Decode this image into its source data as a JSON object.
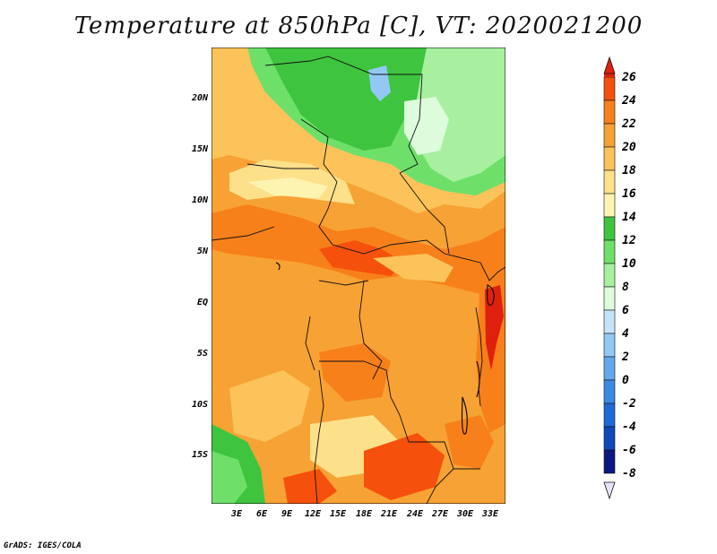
{
  "title": "Temperature at 850hPa [C], VT: 2020021200",
  "credit": "GrADS: IGES/COLA",
  "lat_labels": [
    "20N",
    "15N",
    "10N",
    "5N",
    "EQ",
    "5S",
    "10S",
    "15S"
  ],
  "lon_labels": [
    "3E",
    "6E",
    "9E",
    "12E",
    "15E",
    "18E",
    "21E",
    "24E",
    "27E",
    "30E",
    "33E"
  ],
  "colorbar": {
    "levels": [
      "26",
      "24",
      "22",
      "20",
      "18",
      "16",
      "14",
      "12",
      "10",
      "8",
      "6",
      "4",
      "2",
      "0",
      "-2",
      "-4",
      "-6",
      "-8"
    ],
    "colors_top_to_bottom": [
      "#e0200e",
      "#f5500c",
      "#f7801a",
      "#f7a234",
      "#fbc35a",
      "#fde08a",
      "#fef4b2",
      "#3ec43e",
      "#6ee06a",
      "#a8f0a0",
      "#dcfcdc",
      "#c4e4fa",
      "#94c8f4",
      "#64a8ec",
      "#3c88e4",
      "#2068d4",
      "#1048bc",
      "#0a1880",
      "#e4e4f8"
    ]
  },
  "chart_data": {
    "type": "heatmap",
    "title": "Temperature at 850hPa [C], VT: 2020021200",
    "xlabel": "",
    "ylabel": "",
    "x_ticks": [
      "3E",
      "6E",
      "9E",
      "12E",
      "15E",
      "18E",
      "21E",
      "24E",
      "27E",
      "30E",
      "33E"
    ],
    "y_ticks": [
      "20N",
      "15N",
      "10N",
      "5N",
      "EQ",
      "5S",
      "10S",
      "15S"
    ],
    "colorbar_levels": [
      -8,
      -6,
      -4,
      -2,
      0,
      2,
      4,
      6,
      8,
      10,
      12,
      14,
      16,
      18,
      20,
      22,
      24,
      26
    ],
    "units": "C"
  }
}
